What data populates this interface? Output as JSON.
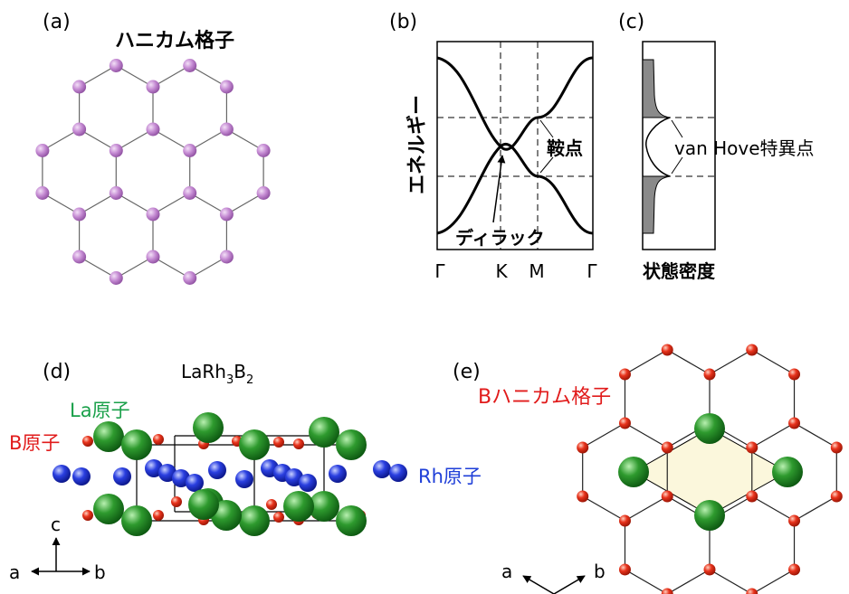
{
  "panel_a": {
    "label": "(a)",
    "title": "ハニカム格子",
    "atom_color": "#c58bd3"
  },
  "panel_b": {
    "label": "(b)",
    "ylabel": "エネルギー",
    "k_labels": [
      "Γ",
      "K",
      "M",
      "Γ"
    ],
    "saddle_label": "鞍点",
    "dirac_label": "ディラック"
  },
  "panel_c": {
    "label": "(c)",
    "vanhove_label": "van Hove特異点",
    "xlabel": "状態密度"
  },
  "panel_d": {
    "label": "(d)",
    "formula_main": "LaRh",
    "formula_sub1": "3",
    "formula_mid": "B",
    "formula_sub2": "2",
    "la_label": "La原子",
    "b_label": "B原子",
    "rh_label": "Rh原子",
    "axis_c": "c",
    "axis_a": "a",
    "axis_b": "b",
    "la_color": "#2e9a2e",
    "b_color": "#e8331c",
    "rh_color": "#2a3fe0"
  },
  "panel_e": {
    "label": "(e)",
    "title": "Bハニカム格子",
    "axis_a": "a",
    "axis_b": "b"
  },
  "colors": {
    "la_text": "#1aa04a",
    "b_text": "#e11b1b",
    "rh_text": "#1f3fd8"
  }
}
